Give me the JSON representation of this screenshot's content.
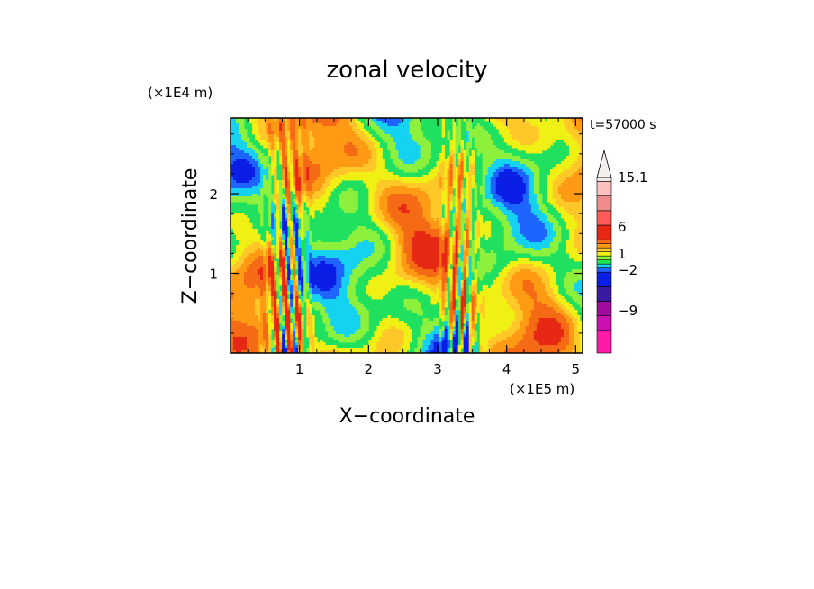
{
  "chart_data": {
    "type": "heatmap",
    "title": "zonal velocity",
    "xlabel": "X−coordinate",
    "ylabel": "Z−coordinate",
    "x_unit": "(×1E5 m)",
    "y_unit": "(×1E4 m)",
    "time_label": "t=57000 s",
    "xlim": [
      0,
      5.1
    ],
    "ylim": [
      0,
      2.95
    ],
    "x_ticks": [
      "1",
      "2",
      "3",
      "4",
      "5"
    ],
    "y_ticks": [
      "1",
      "2"
    ],
    "legend_position": "right",
    "colorbar": {
      "labels": [
        "15.1",
        "6",
        "1",
        "−2",
        "−9"
      ],
      "colors": [
        "#ff1aa8",
        "#cc0fb0",
        "#a00b9e",
        "#3a1aa0",
        "#0a1ee6",
        "#1e64ff",
        "#14d2f0",
        "#1ee650",
        "#8cf03c",
        "#f0f014",
        "#ffc828",
        "#ff9a14",
        "#f56a14",
        "#e62814",
        "#ff5a5a",
        "#f08c8c",
        "#ffc0c0",
        "#f2eaea"
      ]
    },
    "field_note": "Contour-filled zonal velocity field over X-Z domain with wave packets near x≈0.8 and x≈3.3 (×1E5 m)."
  }
}
